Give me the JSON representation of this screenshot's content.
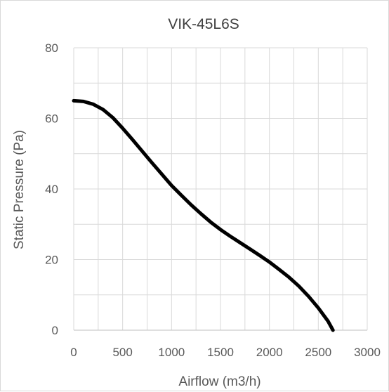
{
  "chart_data": {
    "type": "line",
    "title": "VIK-45L6S",
    "xlabel": "Airflow (m3/h)",
    "ylabel": "Static Pressure (Pa)",
    "xlim": [
      0,
      3000
    ],
    "ylim": [
      0,
      80
    ],
    "x_ticks": [
      "0",
      "500",
      "1000",
      "1500",
      "2000",
      "2500",
      "3000"
    ],
    "y_ticks": [
      "0",
      "20",
      "40",
      "60",
      "80"
    ],
    "grid": true,
    "legend": "none",
    "series": [
      {
        "color": "#000000",
        "points": [
          [
            0,
            65
          ],
          [
            100,
            64.8
          ],
          [
            200,
            64
          ],
          [
            300,
            62.5
          ],
          [
            400,
            60.2
          ],
          [
            500,
            57.2
          ],
          [
            600,
            54
          ],
          [
            700,
            50.7
          ],
          [
            800,
            47.4
          ],
          [
            900,
            44.2
          ],
          [
            1000,
            41
          ],
          [
            1100,
            38.2
          ],
          [
            1200,
            35.5
          ],
          [
            1300,
            33
          ],
          [
            1400,
            30.6
          ],
          [
            1500,
            28.5
          ],
          [
            1600,
            26.6
          ],
          [
            1700,
            24.8
          ],
          [
            1800,
            23
          ],
          [
            1900,
            21.2
          ],
          [
            2000,
            19.3
          ],
          [
            2100,
            17.2
          ],
          [
            2200,
            15
          ],
          [
            2300,
            12.5
          ],
          [
            2400,
            9.6
          ],
          [
            2500,
            6.3
          ],
          [
            2600,
            2.5
          ],
          [
            2650,
            0
          ]
        ]
      }
    ]
  }
}
